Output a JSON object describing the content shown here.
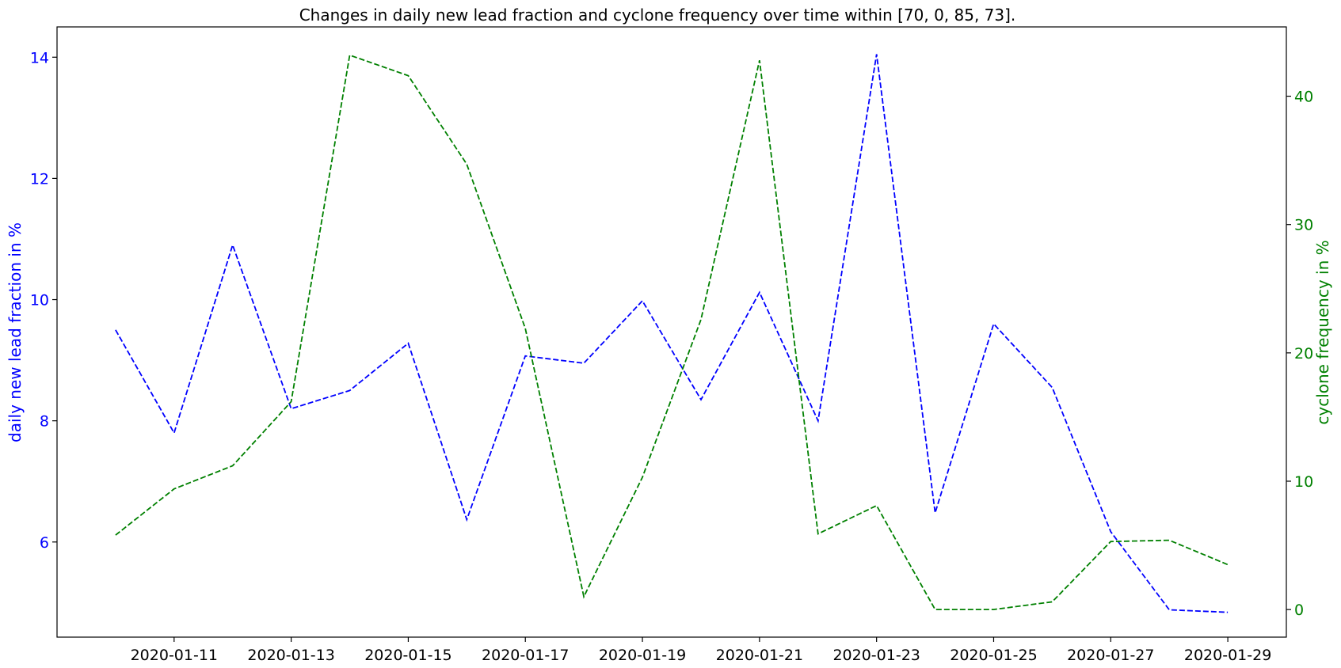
{
  "chart_data": {
    "type": "line",
    "title": "Changes in daily new lead fraction and cyclone frequency over time within [70, 0, 85, 73].",
    "x": [
      "2020-01-10",
      "2020-01-11",
      "2020-01-12",
      "2020-01-13",
      "2020-01-14",
      "2020-01-15",
      "2020-01-16",
      "2020-01-17",
      "2020-01-18",
      "2020-01-19",
      "2020-01-20",
      "2020-01-21",
      "2020-01-22",
      "2020-01-23",
      "2020-01-24",
      "2020-01-25",
      "2020-01-26",
      "2020-01-27",
      "2020-01-28",
      "2020-01-29"
    ],
    "x_tick_labels": [
      "2020-01-11",
      "2020-01-13",
      "2020-01-15",
      "2020-01-17",
      "2020-01-19",
      "2020-01-21",
      "2020-01-23",
      "2020-01-25",
      "2020-01-27",
      "2020-01-29"
    ],
    "xlim": [
      "2020-01-09T00:00",
      "2020-01-30T00:00"
    ],
    "series": [
      {
        "axis": "left",
        "color": "#0000ff",
        "linestyle": "dashed",
        "values": [
          9.5,
          7.8,
          10.9,
          8.2,
          8.5,
          9.28,
          6.37,
          9.07,
          8.95,
          9.98,
          8.35,
          10.12,
          8.0,
          14.05,
          6.48,
          9.6,
          8.55,
          6.17,
          4.88,
          4.84
        ]
      },
      {
        "axis": "right",
        "color": "#008000",
        "linestyle": "dashed",
        "values": [
          5.8,
          9.4,
          11.2,
          16.2,
          43.2,
          41.6,
          34.7,
          21.9,
          1.0,
          10.3,
          22.6,
          42.8,
          5.9,
          8.1,
          0.0,
          0.0,
          0.6,
          5.3,
          5.4,
          3.5
        ]
      }
    ],
    "left_axis": {
      "label": "daily new lead fraction in %",
      "color": "#0000ff",
      "ylim": [
        4.43,
        14.5
      ],
      "ticks": [
        6,
        8,
        10,
        12,
        14
      ]
    },
    "right_axis": {
      "label": "cyclone frequency in %",
      "color": "#008000",
      "ylim": [
        -2.15,
        45.4
      ],
      "ticks": [
        0,
        10,
        20,
        30,
        40
      ]
    },
    "grid": false,
    "legend": "none"
  }
}
